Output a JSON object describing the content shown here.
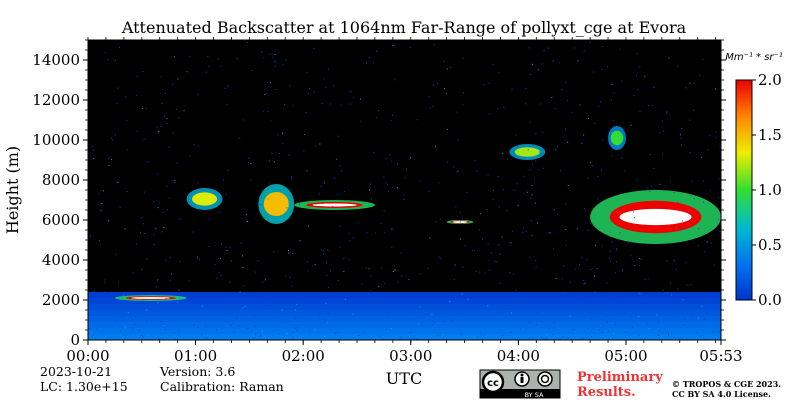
{
  "chart_data": {
    "type": "heatmap",
    "title": "Attenuated Backscatter at 1064nm Far-Range of pollyxt_cge at Evora",
    "xlabel": "UTC",
    "ylabel": "Height (m)",
    "x_ticks": [
      "00:00",
      "01:00",
      "02:00",
      "03:00",
      "04:00",
      "05:00",
      "05:53"
    ],
    "x_range": [
      "00:00",
      "05:53"
    ],
    "y_ticks": [
      0,
      2000,
      4000,
      6000,
      8000,
      10000,
      12000,
      14000
    ],
    "ylim": [
      0,
      15000
    ],
    "colorbar": {
      "unit": "Mm⁻¹ * sr⁻¹",
      "ticks": [
        "0.0",
        "0.5",
        "1.0",
        "1.5",
        "2.0"
      ],
      "range": [
        0,
        2.0
      ],
      "colors": [
        "#0033cc",
        "#0077ee",
        "#00bbcc",
        "#33dd33",
        "#eeee00",
        "#ff8800",
        "#ee0000"
      ]
    },
    "features": [
      {
        "name": "boundary-layer",
        "time": [
          "00:00",
          "05:53"
        ],
        "height_m": [
          0,
          2400
        ],
        "value": 0.3
      },
      {
        "name": "low-cloud",
        "time": [
          "00:15",
          "00:55"
        ],
        "height_m": [
          1950,
          2250
        ],
        "value": 2.0
      },
      {
        "name": "cloud-0100",
        "time": [
          "00:55",
          "01:15"
        ],
        "height_m": [
          6500,
          7600
        ],
        "value": 1.3
      },
      {
        "name": "cloud-0130",
        "time": [
          "01:35",
          "01:55"
        ],
        "height_m": [
          5800,
          7800
        ],
        "value": 1.5
      },
      {
        "name": "cloud-0200",
        "time": [
          "01:55",
          "02:40"
        ],
        "height_m": [
          6500,
          7000
        ],
        "value": 2.0
      },
      {
        "name": "cloud-0330",
        "time": [
          "03:20",
          "03:35"
        ],
        "height_m": [
          5800,
          6000
        ],
        "value": 2.0
      },
      {
        "name": "cirrus-0400",
        "time": [
          "03:55",
          "04:15"
        ],
        "height_m": [
          9000,
          9800
        ],
        "value": 1.2
      },
      {
        "name": "cloud-0445",
        "time": [
          "04:40",
          "05:53"
        ],
        "height_m": [
          4800,
          7500
        ],
        "value": 2.0
      },
      {
        "name": "cirrus-0455",
        "time": [
          "04:50",
          "05:00"
        ],
        "height_m": [
          9500,
          10700
        ],
        "value": 1.0
      }
    ]
  },
  "info": {
    "date": "2023-10-21",
    "lc": "LC: 1.30e+15",
    "version": "Version: 3.6",
    "calibration": "Calibration: Raman",
    "prelim_line1": "Preliminary",
    "prelim_line2": "Results.",
    "copyright_line1": "© TROPOS & CGE 2023.",
    "copyright_line2": "CC BY SA 4.0 License.",
    "license_badge": "BY  SA"
  }
}
